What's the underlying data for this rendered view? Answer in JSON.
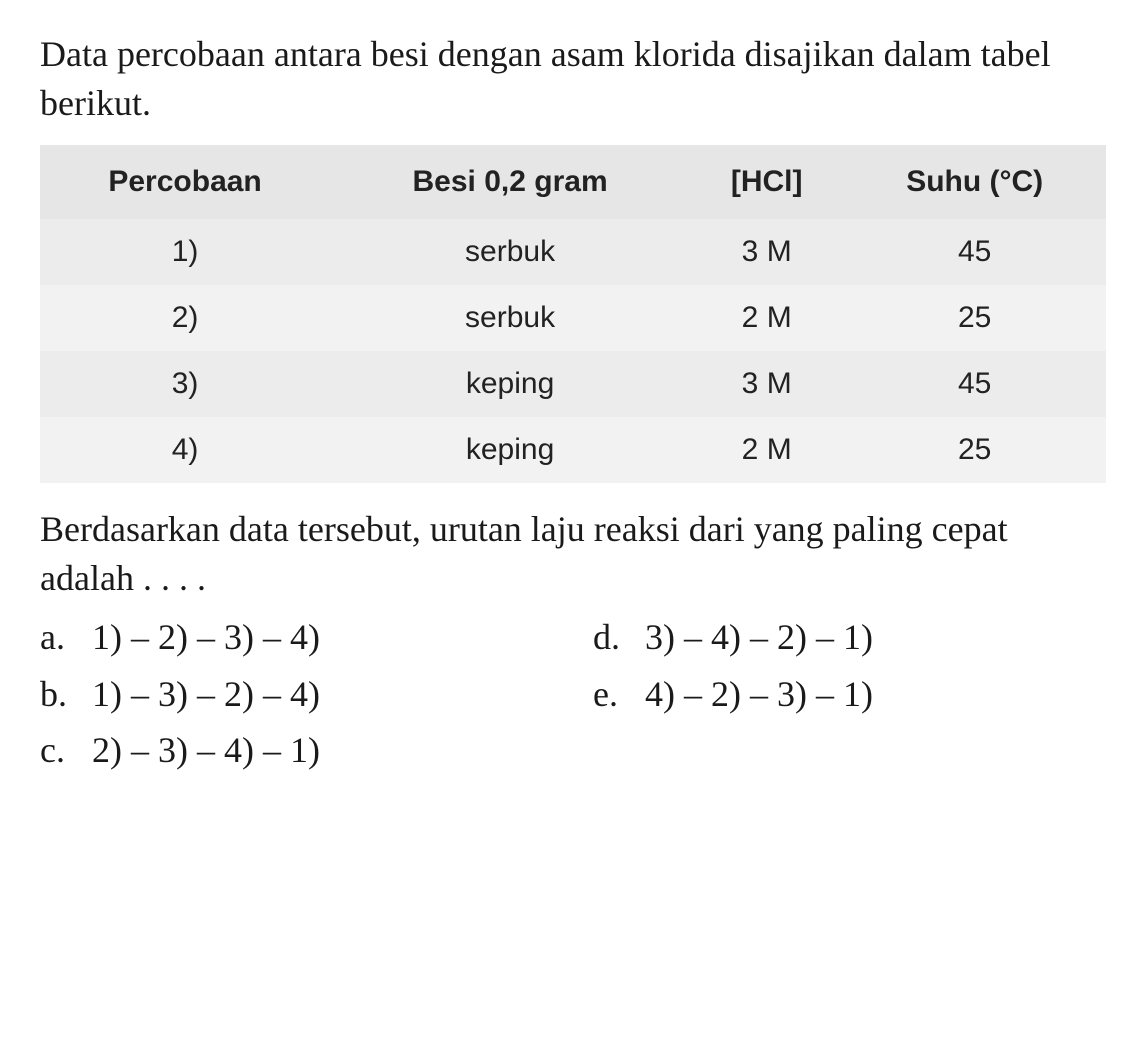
{
  "intro": "Data percobaan antara besi dengan asam klorida disajikan dalam tabel berikut.",
  "table": {
    "headers": {
      "c1": "Percobaan",
      "c2": "Besi 0,2 gram",
      "c3": "[HCl]",
      "c4": "Suhu (°C)"
    },
    "rows": [
      {
        "no": "1)",
        "form": "serbuk",
        "hcl": "3 M",
        "temp": "45"
      },
      {
        "no": "2)",
        "form": "serbuk",
        "hcl": "2 M",
        "temp": "25"
      },
      {
        "no": "3)",
        "form": "keping",
        "hcl": "3 M",
        "temp": "45"
      },
      {
        "no": "4)",
        "form": "keping",
        "hcl": "2 M",
        "temp": "25"
      }
    ]
  },
  "follow": "Berdasarkan data tersebut, urutan laju reaksi dari yang paling cepat adalah . . . .",
  "options": {
    "a": {
      "letter": "a.",
      "text": "1) – 2) – 3) – 4)"
    },
    "b": {
      "letter": "b.",
      "text": "1) – 3) – 2) – 4)"
    },
    "c": {
      "letter": "c.",
      "text": "2) – 3) – 4) – 1)"
    },
    "d": {
      "letter": "d.",
      "text": "3) – 4) – 2) – 1)"
    },
    "e": {
      "letter": "e.",
      "text": "4) – 2) – 3) – 1)"
    }
  }
}
